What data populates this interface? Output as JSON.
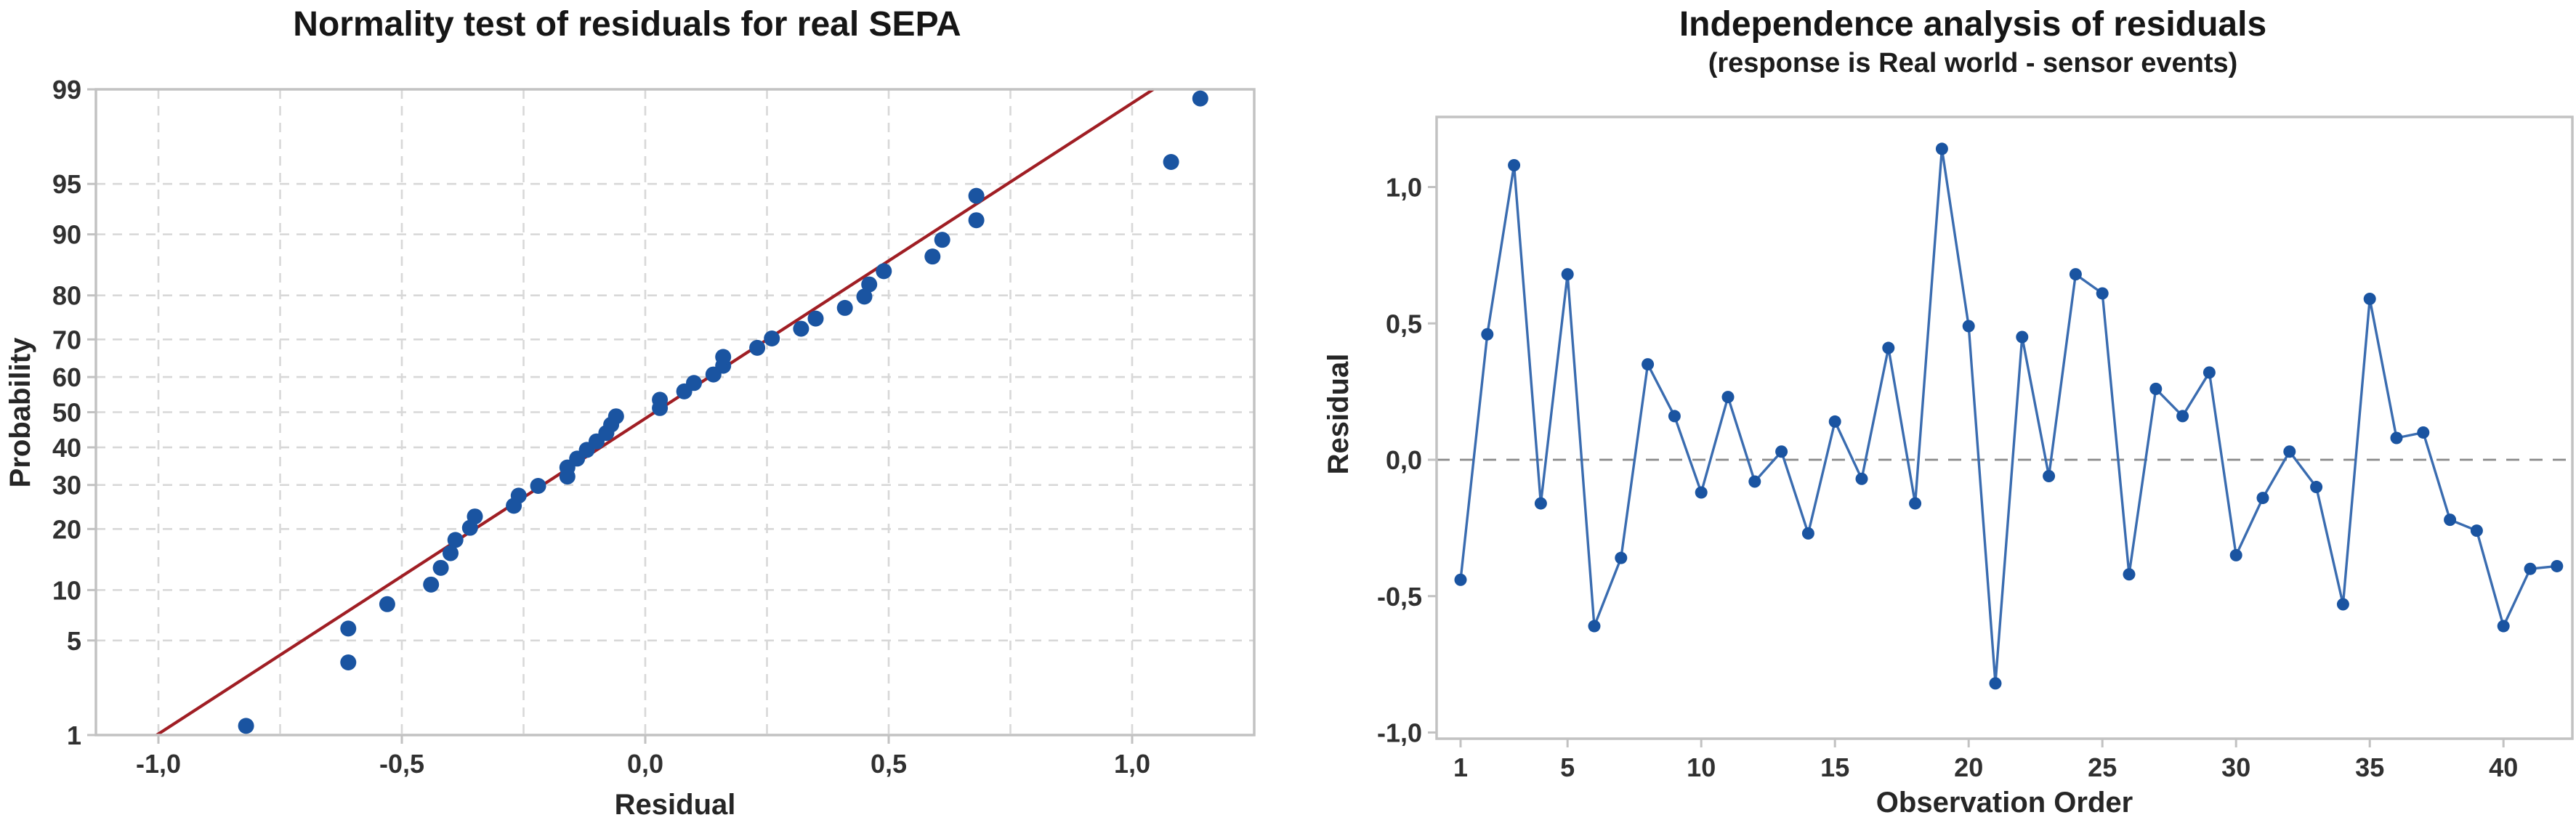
{
  "page": {
    "background": "#ffffff",
    "decimal_separator": ","
  },
  "colors": {
    "marker_blue": "#1a54a1",
    "series_line_blue": "#3a6cb0",
    "fit_line_red": "#a01e24",
    "gridline": "#d8d8d8",
    "frame": "#c2c2c2",
    "zero_line": "#8a8a8a",
    "tick_text": "#303030",
    "title_text": "#161616"
  },
  "chart_data": [
    {
      "type": "scatter",
      "name": "normal-probability-plot",
      "title": "Normality test of residuals for real SEPA",
      "xlabel": "Residual",
      "ylabel": "Probability",
      "y_scale": "normal-probability-percent",
      "grid": true,
      "legend_position": "none",
      "xlim": [
        -1.13,
        1.25
      ],
      "ylim_percent": [
        1,
        99
      ],
      "x_ticks": [
        {
          "v": -1.0,
          "label": "-1,0"
        },
        {
          "v": -0.5,
          "label": "-0,5"
        },
        {
          "v": 0.0,
          "label": "0,0"
        },
        {
          "v": 0.5,
          "label": "0,5"
        },
        {
          "v": 1.0,
          "label": "1,0"
        }
      ],
      "x_gridlines": [
        -1.0,
        -0.75,
        -0.5,
        -0.25,
        0.0,
        0.25,
        0.5,
        0.75,
        1.0
      ],
      "y_ticks": [
        1,
        5,
        10,
        20,
        30,
        40,
        50,
        60,
        70,
        80,
        90,
        95,
        99
      ],
      "y_gridlines": [
        5,
        10,
        20,
        30,
        40,
        50,
        60,
        70,
        80,
        90,
        95
      ],
      "points": {
        "residual": [
          -0.82,
          -0.61,
          -0.61,
          -0.53,
          -0.44,
          -0.42,
          -0.4,
          -0.39,
          -0.36,
          -0.35,
          -0.27,
          -0.26,
          -0.22,
          -0.16,
          -0.16,
          -0.14,
          -0.12,
          -0.1,
          -0.08,
          -0.07,
          -0.06,
          0.03,
          0.03,
          0.08,
          0.1,
          0.14,
          0.16,
          0.16,
          0.23,
          0.26,
          0.32,
          0.35,
          0.41,
          0.45,
          0.46,
          0.49,
          0.59,
          0.61,
          0.68,
          0.68,
          1.08,
          1.14
        ],
        "percent": [
          1.19,
          3.57,
          5.95,
          8.33,
          10.71,
          13.1,
          15.48,
          17.86,
          20.24,
          22.62,
          25.0,
          27.38,
          29.76,
          32.14,
          34.52,
          36.9,
          39.29,
          41.67,
          44.05,
          46.43,
          48.81,
          51.19,
          53.57,
          55.95,
          58.33,
          60.71,
          63.1,
          65.48,
          67.86,
          70.24,
          72.62,
          75.0,
          77.38,
          79.76,
          82.14,
          84.52,
          86.9,
          89.29,
          91.67,
          94.05,
          96.43,
          98.81
        ]
      },
      "fit_line": {
        "mean": 0.02,
        "stdev": 0.44
      }
    },
    {
      "type": "line",
      "name": "residuals-vs-observation-order",
      "title": "Independence analysis of residuals",
      "subtitle": "(response is Real world - sensor events)",
      "xlabel": "Observation Order",
      "ylabel": "Residual",
      "grid": false,
      "legend_position": "none",
      "xlim": [
        0.1,
        42.6
      ],
      "ylim": [
        -1.02,
        1.26
      ],
      "x_ticks": [
        1,
        5,
        10,
        15,
        20,
        25,
        30,
        35,
        40
      ],
      "y_ticks": [
        {
          "v": 1.0,
          "label": "1,0"
        },
        {
          "v": 0.5,
          "label": "0,5"
        },
        {
          "v": 0.0,
          "label": "0,0"
        },
        {
          "v": -0.5,
          "label": "-0,5"
        },
        {
          "v": -1.0,
          "label": "-1,0"
        }
      ],
      "zero_reference_line": 0.0,
      "x": [
        1,
        2,
        3,
        4,
        5,
        6,
        7,
        8,
        9,
        10,
        11,
        12,
        13,
        14,
        15,
        16,
        17,
        18,
        19,
        20,
        21,
        22,
        23,
        24,
        25,
        26,
        27,
        28,
        29,
        30,
        31,
        32,
        33,
        34,
        35,
        36,
        37,
        38,
        39,
        40,
        41,
        42
      ],
      "values": [
        -0.44,
        0.46,
        1.08,
        -0.16,
        0.68,
        -0.61,
        -0.36,
        0.35,
        0.16,
        -0.12,
        0.23,
        -0.08,
        0.03,
        -0.27,
        0.14,
        -0.07,
        0.41,
        -0.16,
        1.14,
        0.49,
        -0.82,
        0.45,
        -0.06,
        0.68,
        0.61,
        -0.42,
        0.26,
        0.16,
        0.32,
        -0.35,
        -0.14,
        0.03,
        -0.1,
        -0.53,
        0.59,
        0.08,
        0.1,
        -0.22,
        -0.26,
        -0.61,
        -0.4,
        -0.39
      ]
    }
  ]
}
